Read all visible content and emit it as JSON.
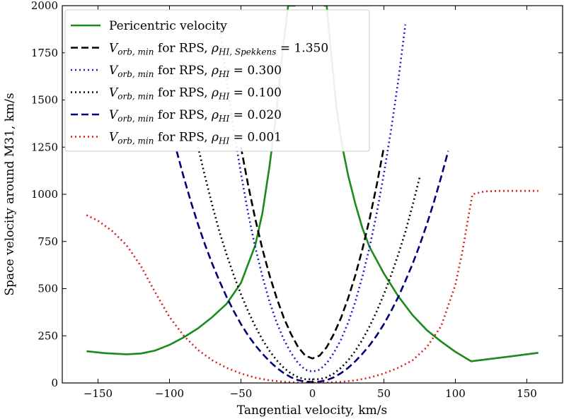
{
  "chart_data": {
    "type": "line",
    "xlabel": "Tangential velocity, km/s",
    "ylabel": "Space velocity around M31, km/s",
    "xlim": [
      -175,
      175
    ],
    "ylim": [
      0,
      2000
    ],
    "xticks": [
      -150,
      -100,
      -50,
      0,
      50,
      100,
      150
    ],
    "yticks": [
      0,
      250,
      500,
      750,
      1000,
      1250,
      1500,
      1750,
      2000
    ],
    "grid": false,
    "legend_position": "top-left",
    "series": [
      {
        "name": "Pericentric velocity",
        "color": "#1a8a1a",
        "style": "solid",
        "x": [
          -158,
          -145,
          -130,
          -120,
          -110,
          -100,
          -90,
          -80,
          -70,
          -60,
          -50,
          -40,
          -35,
          -30,
          -25,
          -21,
          -17,
          -13,
          -12
        ],
        "y": [
          168,
          158,
          152,
          156,
          172,
          202,
          242,
          290,
          350,
          420,
          530,
          730,
          900,
          1150,
          1450,
          1750,
          2000,
          2000,
          2000
        ]
      },
      {
        "name": "Pericentric velocity (right branch)",
        "color": "#1a8a1a",
        "style": "solid",
        "x": [
          8,
          10,
          13,
          17,
          21,
          25,
          30,
          35,
          40,
          50,
          60,
          70,
          80,
          90,
          100,
          111,
          125,
          140,
          158
        ],
        "y": [
          2000,
          2000,
          1750,
          1450,
          1250,
          1100,
          950,
          820,
          720,
          580,
          460,
          360,
          280,
          220,
          165,
          115,
          128,
          142,
          160
        ]
      },
      {
        "name": "V_orb,min for RPS, rho_HI,Spekkens = 1.350",
        "color": "#000000",
        "style": "dashed",
        "x": [
          -50,
          -45,
          -40,
          -35,
          -30,
          -25,
          -20,
          -15,
          -10,
          -5,
          0,
          5,
          10,
          15,
          20,
          25,
          30,
          35,
          40,
          45,
          50
        ],
        "y": [
          1250,
          1050,
          870,
          710,
          570,
          450,
          345,
          260,
          190,
          145,
          130,
          145,
          190,
          260,
          345,
          450,
          570,
          710,
          870,
          1050,
          1250
        ]
      },
      {
        "name": "V_orb,min for RPS, rho_HI = 0.300",
        "color": "#1a1acc",
        "style": "dotted",
        "x": [
          -65,
          -60,
          -55,
          -50,
          -45,
          -40,
          -35,
          -30,
          -25,
          -20,
          -15,
          -10,
          -5,
          0,
          5,
          10,
          15,
          20,
          25,
          30,
          35,
          40,
          45,
          50,
          55,
          60,
          65
        ],
        "y": [
          1900,
          1600,
          1340,
          1110,
          900,
          720,
          565,
          430,
          320,
          230,
          160,
          105,
          70,
          60,
          70,
          105,
          160,
          230,
          320,
          430,
          565,
          720,
          900,
          1110,
          1340,
          1600,
          1900
        ]
      },
      {
        "name": "V_orb,min for RPS, rho_HI = 0.100",
        "color": "#000000",
        "style": "dotted",
        "x": [
          -80,
          -75,
          -70,
          -65,
          -60,
          -55,
          -50,
          -45,
          -40,
          -35,
          -30,
          -25,
          -20,
          -15,
          -10,
          -5,
          0,
          5,
          10,
          15,
          20,
          25,
          30,
          35,
          40,
          45,
          50,
          55,
          60,
          65,
          70,
          75
        ],
        "y": [
          1250,
          1090,
          940,
          800,
          680,
          570,
          470,
          380,
          300,
          230,
          170,
          120,
          80,
          50,
          30,
          20,
          20,
          20,
          30,
          50,
          80,
          120,
          170,
          230,
          300,
          380,
          470,
          570,
          680,
          800,
          940,
          1090
        ]
      },
      {
        "name": "V_orb,min for RPS, rho_HI = 0.020",
        "color": "#00007a",
        "style": "dashed",
        "x": [
          -95,
          -90,
          -85,
          -80,
          -75,
          -70,
          -65,
          -60,
          -55,
          -50,
          -45,
          -40,
          -35,
          -30,
          -25,
          -20,
          -15,
          -10,
          -5,
          0,
          5,
          10,
          15,
          20,
          25,
          30,
          35,
          40,
          45,
          50,
          55,
          60,
          65,
          70,
          75,
          80,
          85,
          90,
          95
        ],
        "y": [
          1230,
          1090,
          960,
          840,
          730,
          630,
          540,
          455,
          380,
          312,
          252,
          200,
          155,
          115,
          80,
          52,
          30,
          15,
          7,
          5,
          7,
          15,
          30,
          52,
          80,
          115,
          155,
          200,
          252,
          312,
          380,
          455,
          540,
          630,
          730,
          840,
          960,
          1090,
          1230
        ]
      },
      {
        "name": "V_orb,min for RPS, rho_HI = 0.001",
        "color": "#e31a1c",
        "style": "dotted",
        "x": [
          -158,
          -150,
          -140,
          -130,
          -120,
          -110,
          -100,
          -90,
          -80,
          -70,
          -60,
          -50,
          -40,
          -30,
          -20,
          -10,
          0,
          10,
          20,
          30,
          40,
          50,
          60,
          70,
          80,
          90,
          100,
          105,
          110,
          112,
          120,
          130,
          140,
          150,
          158
        ],
        "y": [
          890,
          860,
          805,
          730,
          620,
          480,
          350,
          250,
          175,
          120,
          80,
          50,
          28,
          14,
          6,
          2,
          0,
          2,
          6,
          14,
          28,
          50,
          80,
          120,
          190,
          300,
          520,
          700,
          920,
          1000,
          1015,
          1018,
          1018,
          1018,
          1018
        ]
      }
    ]
  },
  "legend": {
    "items": [
      {
        "series": 0,
        "label": "Pericentric velocity",
        "tex": false
      },
      {
        "series": 2,
        "base": "V",
        "sub": "orb, min",
        "mid": " for RPS, ",
        "rho": "ρ",
        "rho_sub": "HI, Spekkens",
        "value": " = 1.350",
        "tex": true
      },
      {
        "series": 3,
        "base": "V",
        "sub": "orb, min",
        "mid": " for RPS, ",
        "rho": "ρ",
        "rho_sub": "HI",
        "value": " = 0.300",
        "tex": true
      },
      {
        "series": 4,
        "base": "V",
        "sub": "orb, min",
        "mid": " for RPS, ",
        "rho": "ρ",
        "rho_sub": "HI",
        "value": " = 0.100",
        "tex": true
      },
      {
        "series": 5,
        "base": "V",
        "sub": "orb, min",
        "mid": " for RPS, ",
        "rho": "ρ",
        "rho_sub": "HI",
        "value": " = 0.020",
        "tex": true
      },
      {
        "series": 6,
        "base": "V",
        "sub": "orb, min",
        "mid": " for RPS, ",
        "rho": "ρ",
        "rho_sub": "HI",
        "value": " = 0.001",
        "tex": true
      }
    ]
  }
}
